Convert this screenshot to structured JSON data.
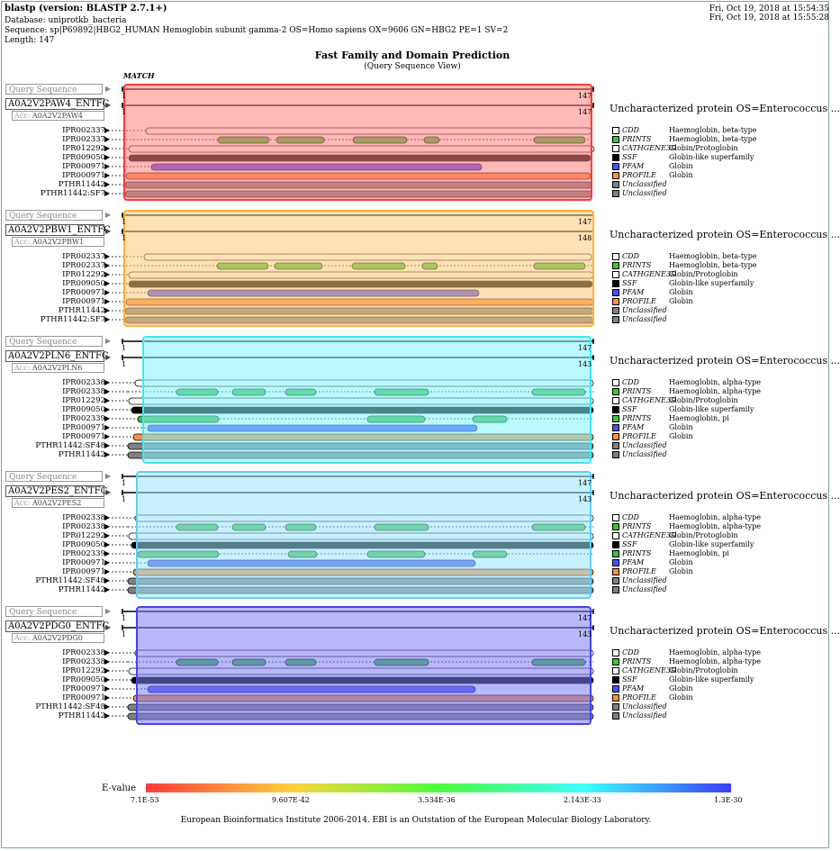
{
  "header": {
    "program": "blastp (version: BLASTP 2.7.1+)",
    "database": "Database: uniprotkb_bacteria",
    "sequence": "Sequence: sp|P69892|HBG2_HUMAN Hemoglobin subunit gamma-2 OS=Homo sapiens OX=9606 GN=HBG2 PE=1 SV=2",
    "length": "Length: 147",
    "date1": "Fri, Oct 19, 2018 at 15:54:35",
    "date2": "Fri, Oct 19, 2018 at 15:55:28"
  },
  "title": "Fast Family and Domain Prediction",
  "subtitle": "(Query Sequence View)",
  "match_label": "MATCH",
  "query_label": "Query Sequence",
  "hits": [
    {
      "id": "A0A2V2PAW4_ENTFC",
      "acc": "A0A2V2PAW4",
      "acc_prefix": "Acc:",
      "description": "Uncharacterized protein OS=Enterococcus ...",
      "color": "#ff7f7f",
      "border": "#ff3b3b",
      "q_start": "1",
      "q_end": "147",
      "h_start": "1",
      "h_end": "147",
      "rows": [
        {
          "label": "IPR002337",
          "db": "CDD",
          "name": "Haemoglobin, beta-type",
          "color": "#ffffff"
        },
        {
          "label": "IPR002337",
          "db": "PRINTS",
          "name": "Haemoglobin, beta-type",
          "color": "#3cc23c"
        },
        {
          "label": "IPR012292",
          "db": "CATHGENE3D",
          "name": "Globin/Protoglobin",
          "color": "#ffffff"
        },
        {
          "label": "IPR009050",
          "db": "SSF",
          "name": "Globin-like superfamily",
          "color": "#000000"
        },
        {
          "label": "IPR000971",
          "db": "PFAM",
          "name": "Globin",
          "color": "#4d4dff"
        },
        {
          "label": "IPR000971",
          "db": "PROFILE",
          "name": "Globin",
          "color": "#ff9040"
        },
        {
          "label": "PTHR11442",
          "db": "Unclassified",
          "name": "",
          "color": "#808080"
        },
        {
          "label": "PTHR11442:SF7",
          "db": "Unclassified",
          "name": "",
          "color": "#808080"
        }
      ]
    },
    {
      "id": "A0A2V2PBW1_ENTFC",
      "acc": "A0A2V2PBW1",
      "acc_prefix": "Acc:",
      "description": "Uncharacterized protein OS=Enterococcus ...",
      "color": "#ffc87a",
      "border": "#ffb040",
      "q_start": "1",
      "q_end": "147",
      "h_start": "1",
      "h_end": "148",
      "rows": [
        {
          "label": "IPR002337",
          "db": "CDD",
          "name": "Haemoglobin, beta-type",
          "color": "#ffffff"
        },
        {
          "label": "IPR002337",
          "db": "PRINTS",
          "name": "Haemoglobin, beta-type",
          "color": "#3cc23c"
        },
        {
          "label": "IPR012292",
          "db": "CATHGENE3D",
          "name": "Globin/Protoglobin",
          "color": "#ffffff"
        },
        {
          "label": "IPR009050",
          "db": "SSF",
          "name": "Globin-like superfamily",
          "color": "#000000"
        },
        {
          "label": "IPR000971",
          "db": "PFAM",
          "name": "Globin",
          "color": "#4d4dff"
        },
        {
          "label": "IPR000971",
          "db": "PROFILE",
          "name": "Globin",
          "color": "#ff9040"
        },
        {
          "label": "PTHR11442",
          "db": "Unclassified",
          "name": "",
          "color": "#808080"
        },
        {
          "label": "PTHR11442:SF7",
          "db": "Unclassified",
          "name": "",
          "color": "#808080"
        }
      ]
    },
    {
      "id": "A0A2V2PLN6_ENTFC",
      "acc": "A0A2V2PLN6",
      "acc_prefix": "Acc:",
      "description": "Uncharacterized protein OS=Enterococcus ...",
      "color": "#7ff4ff",
      "border": "#40e8f0",
      "q_start": "1",
      "q_end": "147",
      "h_start": "1",
      "h_end": "143",
      "rows": [
        {
          "label": "IPR002338",
          "db": "CDD",
          "name": "Haemoglobin, alpha-type",
          "color": "#ffffff"
        },
        {
          "label": "IPR002338",
          "db": "PRINTS",
          "name": "Haemoglobin, alpha-type",
          "color": "#3cc23c"
        },
        {
          "label": "IPR012292",
          "db": "CATHGENE3D",
          "name": "Globin/Protoglobin",
          "color": "#ffffff"
        },
        {
          "label": "IPR009050",
          "db": "SSF",
          "name": "Globin-like superfamily",
          "color": "#000000"
        },
        {
          "label": "IPR002339",
          "db": "PRINTS",
          "name": "Haemoglobin, pi",
          "color": "#3cc23c"
        },
        {
          "label": "IPR000971",
          "db": "PFAM",
          "name": "Globin",
          "color": "#4d4dff"
        },
        {
          "label": "IPR000971",
          "db": "PROFILE",
          "name": "Globin",
          "color": "#ff9040"
        },
        {
          "label": "PTHR11442:SF48",
          "db": "Unclassified",
          "name": "",
          "color": "#808080"
        },
        {
          "label": "PTHR11442",
          "db": "Unclassified",
          "name": "",
          "color": "#808080"
        }
      ]
    },
    {
      "id": "A0A2V2PES2_ENTFC",
      "acc": "A0A2V2PES2",
      "acc_prefix": "Acc:",
      "description": "Uncharacterized protein OS=Enterococcus ...",
      "color": "#9ae6ff",
      "border": "#5cd0f5",
      "q_start": "1",
      "q_end": "147",
      "h_start": "1",
      "h_end": "143",
      "rows": [
        {
          "label": "IPR002338",
          "db": "CDD",
          "name": "Haemoglobin, alpha-type",
          "color": "#ffffff"
        },
        {
          "label": "IPR002338",
          "db": "PRINTS",
          "name": "Haemoglobin, alpha-type",
          "color": "#3cc23c"
        },
        {
          "label": "IPR012292",
          "db": "CATHGENE3D",
          "name": "Globin/Protoglobin",
          "color": "#ffffff"
        },
        {
          "label": "IPR009050",
          "db": "SSF",
          "name": "Globin-like superfamily",
          "color": "#000000"
        },
        {
          "label": "IPR002339",
          "db": "PRINTS",
          "name": "Haemoglobin, pi",
          "color": "#3cc23c"
        },
        {
          "label": "IPR000971",
          "db": "PFAM",
          "name": "Globin",
          "color": "#4d4dff"
        },
        {
          "label": "IPR000971",
          "db": "PROFILE",
          "name": "Globin",
          "color": "#ff9040"
        },
        {
          "label": "PTHR11442:SF48",
          "db": "Unclassified",
          "name": "",
          "color": "#808080"
        },
        {
          "label": "PTHR11442",
          "db": "Unclassified",
          "name": "",
          "color": "#808080"
        }
      ]
    },
    {
      "id": "A0A2V2PDG0_ENTFC",
      "acc": "A0A2V2PDG0",
      "acc_prefix": "Acc:",
      "description": "Uncharacterized protein OS=Enterococcus ...",
      "color": "#7b7bf5",
      "border": "#4444ee",
      "q_start": "1",
      "q_end": "147",
      "h_start": "1",
      "h_end": "143",
      "rows": [
        {
          "label": "IPR002338",
          "db": "CDD",
          "name": "Haemoglobin, alpha-type",
          "color": "#ffffff"
        },
        {
          "label": "IPR002338",
          "db": "PRINTS",
          "name": "Haemoglobin, alpha-type",
          "color": "#3cc23c"
        },
        {
          "label": "IPR012292",
          "db": "CATHGENE3D",
          "name": "Globin/Protoglobin",
          "color": "#ffffff"
        },
        {
          "label": "IPR009050",
          "db": "SSF",
          "name": "Globin-like superfamily",
          "color": "#000000"
        },
        {
          "label": "IPR000971",
          "db": "PFAM",
          "name": "Globin",
          "color": "#4d4dff"
        },
        {
          "label": "IPR000971",
          "db": "PROFILE",
          "name": "Globin",
          "color": "#ff9040"
        },
        {
          "label": "PTHR11442:SF48",
          "db": "Unclassified",
          "name": "",
          "color": "#808080"
        },
        {
          "label": "PTHR11442",
          "db": "Unclassified",
          "name": "",
          "color": "#808080"
        }
      ]
    }
  ],
  "evalue": {
    "label": "E-value",
    "ticks": [
      "7.1E-53",
      "9.607E-42",
      "3.534E-36",
      "2.143E-33",
      "1.3E-30"
    ],
    "gradient": [
      "#ff3b3b",
      "#ffd23c",
      "#4cff3c",
      "#3cffff",
      "#3c3cff"
    ]
  },
  "footer": "European Bioinformatics Institute 2006-2014. EBI is an Outstation of the European Molecular Biology Laboratory."
}
